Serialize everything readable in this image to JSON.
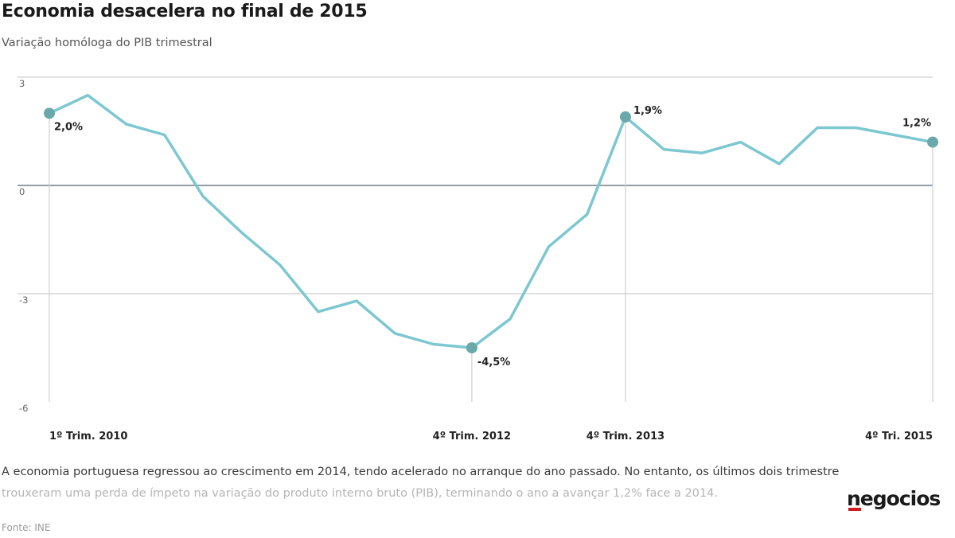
{
  "title": "Economia desacelera no final de 2015",
  "subtitle": "Variação homóloga do PIB trimestral",
  "caption": {
    "line1": "A economia portuguesa regressou ao crescimento em 2014, tendo acelerado no arranque do ano passado. No entanto, os últimos dois trimestre",
    "line2": "trouxeram uma perda de ímpeto na variação do produto interno bruto (PIB), terminando o ano a avançar 1,2% face a 2014."
  },
  "source": "Fonte: INE",
  "logo": "negocios",
  "colors": {
    "line": "#7cc7d0",
    "marker": "#6aa8a9",
    "grid": "#cfcfcf",
    "zero": "#6f7f86",
    "logo_accent": "#d11b21"
  },
  "chart_data": {
    "type": "line",
    "ylim": [
      -6,
      3
    ],
    "yticks": [
      3,
      0,
      -3,
      -6
    ],
    "ytick_labels": [
      "3",
      "0",
      "-3",
      "-6"
    ],
    "grid": true,
    "series": [
      {
        "values": [
          2.0,
          2.5,
          1.7,
          1.4,
          -0.3,
          -1.3,
          -2.2,
          -3.5,
          -3.2,
          -4.1,
          -4.4,
          -4.5,
          -3.7,
          -1.7,
          -0.8,
          1.9,
          1.0,
          0.9,
          1.2,
          0.6,
          1.6,
          1.6,
          1.4,
          1.2
        ]
      }
    ],
    "x_tick_labels": [
      {
        "index": 0,
        "label": "1º Trim. 2010"
      },
      {
        "index": 11,
        "label": "4º Trim. 2012"
      },
      {
        "index": 15,
        "label": "4º Trim. 2013"
      },
      {
        "index": 23,
        "label": "4º Tri. 2015"
      }
    ],
    "highlighted_points": [
      {
        "index": 0,
        "label": "2,0%"
      },
      {
        "index": 11,
        "label": "-4,5%"
      },
      {
        "index": 15,
        "label": "1,9%"
      },
      {
        "index": 23,
        "label": "1,2%"
      }
    ]
  }
}
